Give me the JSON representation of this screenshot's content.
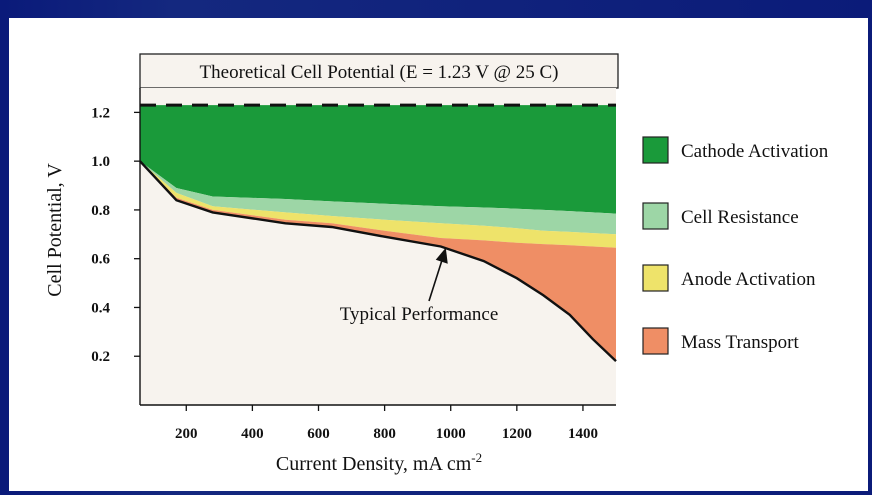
{
  "chart_data": {
    "type": "area",
    "banner": "Theoretical Cell Potential (E = 1.23 V @ 25 C)",
    "xlabel": "Current Density, mA cm",
    "xlabel_sup": "-2",
    "ylabel": "Cell Potential, V",
    "xlim": [
      60,
      1500
    ],
    "ylim": [
      0,
      1.3
    ],
    "theoretical_potential": 1.23,
    "x_ticks": [
      "200",
      "400",
      "600",
      "800",
      "1000",
      "1200",
      "1400"
    ],
    "x_tick_values": [
      200,
      400,
      600,
      800,
      1000,
      1200,
      1400
    ],
    "y_ticks": [
      "0.2",
      "0.4",
      "0.6",
      "0.8",
      "1.0",
      "1.2"
    ],
    "y_tick_values": [
      0.2,
      0.4,
      0.6,
      0.8,
      1.0,
      1.2
    ],
    "legend_placement": "right",
    "x": [
      60,
      170,
      280,
      500,
      640,
      800,
      970,
      1100,
      1200,
      1280,
      1360,
      1430,
      1500
    ],
    "series": [
      {
        "name": "Cathode Activation",
        "color": "#1a9a3a",
        "upper": [
          1.23,
          1.23,
          1.23,
          1.23,
          1.23,
          1.23,
          1.23,
          1.23,
          1.23,
          1.23,
          1.23,
          1.23,
          1.23
        ],
        "lower": [
          1.0,
          0.89,
          0.855,
          0.845,
          0.835,
          0.825,
          0.815,
          0.81,
          0.805,
          0.8,
          0.795,
          0.79,
          0.785
        ]
      },
      {
        "name": "Cell Resistance",
        "color": "#9dd6a6",
        "upper": [
          1.0,
          0.89,
          0.855,
          0.845,
          0.835,
          0.825,
          0.815,
          0.81,
          0.805,
          0.8,
          0.795,
          0.79,
          0.785
        ],
        "lower": [
          1.0,
          0.87,
          0.815,
          0.79,
          0.775,
          0.76,
          0.745,
          0.735,
          0.725,
          0.715,
          0.71,
          0.705,
          0.7
        ]
      },
      {
        "name": "Anode Activation",
        "color": "#eee36a",
        "upper": [
          1.0,
          0.87,
          0.815,
          0.79,
          0.775,
          0.76,
          0.745,
          0.735,
          0.725,
          0.715,
          0.71,
          0.705,
          0.7
        ],
        "lower": [
          1.0,
          0.85,
          0.8,
          0.76,
          0.745,
          0.715,
          0.685,
          0.675,
          0.665,
          0.66,
          0.655,
          0.65,
          0.645
        ]
      },
      {
        "name": "Mass Transport",
        "color": "#ef8e65",
        "upper": [
          1.0,
          0.85,
          0.8,
          0.76,
          0.745,
          0.715,
          0.685,
          0.675,
          0.665,
          0.66,
          0.655,
          0.65,
          0.645
        ],
        "lower": [
          1.0,
          0.84,
          0.79,
          0.745,
          0.73,
          0.69,
          0.65,
          0.59,
          0.52,
          0.45,
          0.37,
          0.27,
          0.18
        ]
      }
    ],
    "typical_performance": {
      "label": "Typical Performance",
      "y": [
        1.0,
        0.84,
        0.79,
        0.745,
        0.73,
        0.69,
        0.65,
        0.59,
        0.52,
        0.45,
        0.37,
        0.27,
        0.18
      ],
      "arrow_target": [
        985,
        0.645
      ]
    },
    "legend": [
      "Cathode Activation",
      "Cell Resistance",
      "Anode Activation",
      "Mass Transport"
    ]
  },
  "colors": {
    "background": "#0b1a78",
    "plot_area": "#f7f3ee",
    "banner_fill": "#f7f3ee",
    "curve": "#111111"
  }
}
